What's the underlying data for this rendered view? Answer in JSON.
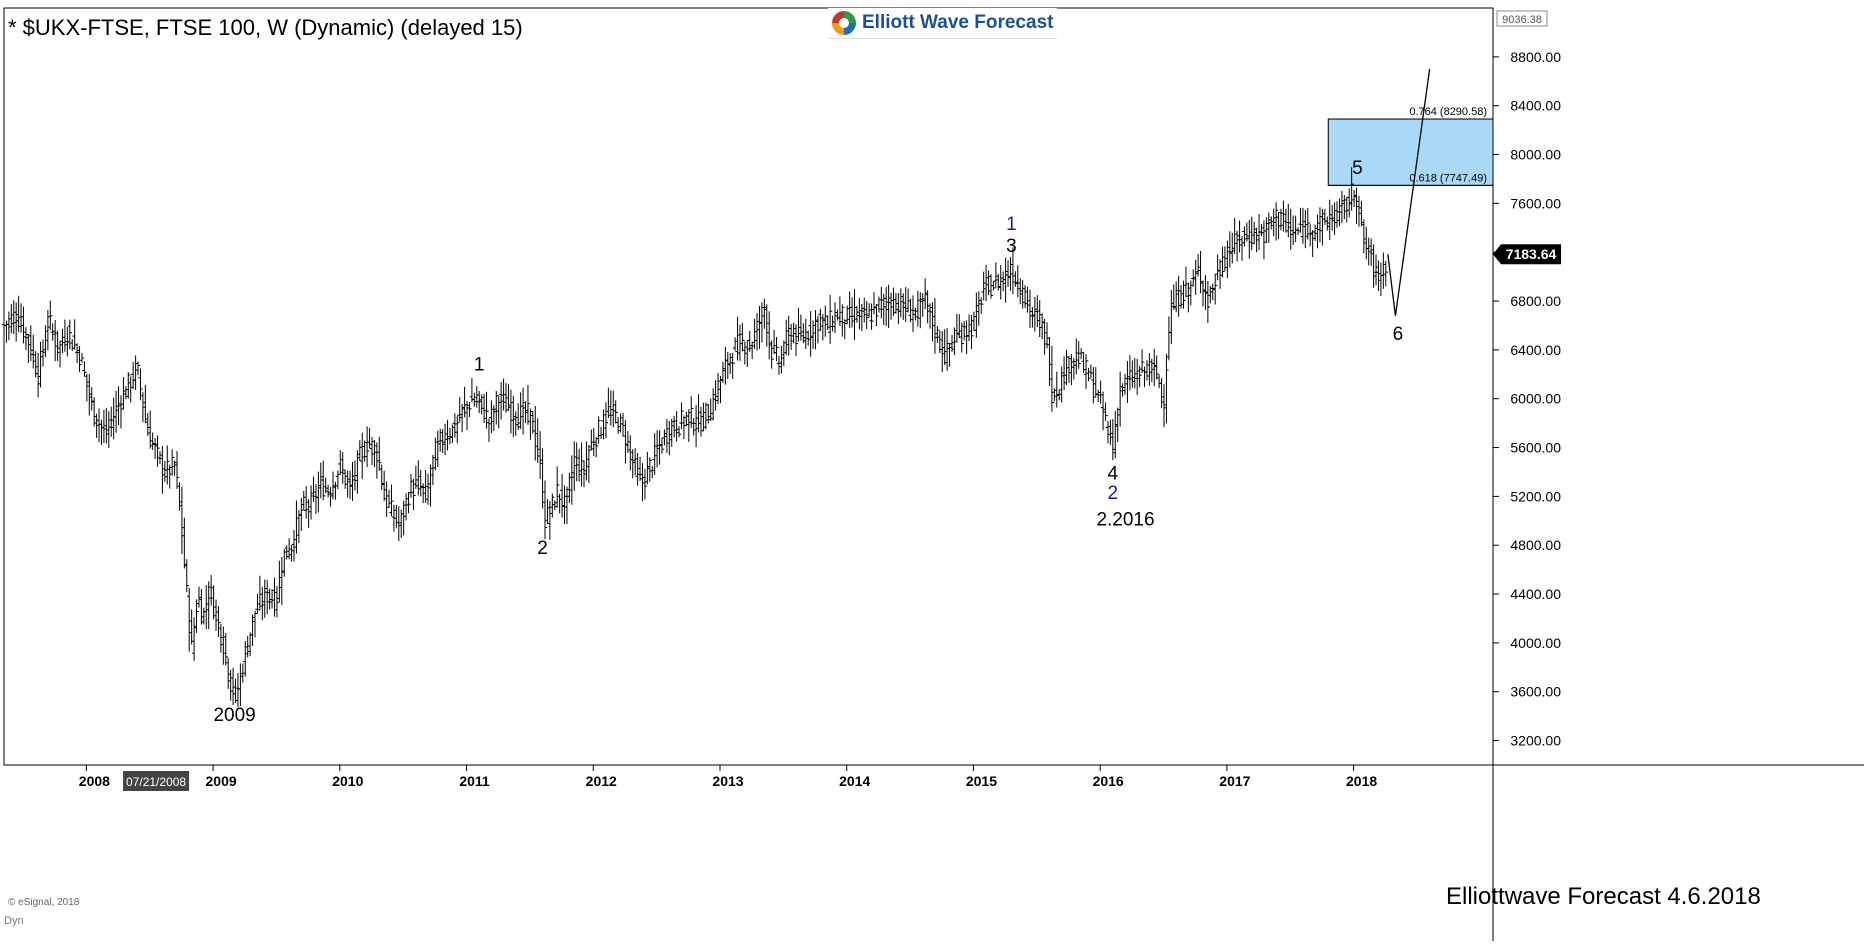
{
  "header": {
    "title": "* $UKX-FTSE, FTSE 100, W (Dynamic) (delayed 15)",
    "logo_text": "Elliott Wave Forecast"
  },
  "footer": {
    "watermark": "Elliottwave Forecast  4.6.2018",
    "copyright": "© eSignal, 2018",
    "dyn_label": "Dyn",
    "cursor_date": "07/21/2008"
  },
  "colors": {
    "price_bars": "#000000",
    "target_box_fill": "#aad8f7",
    "target_box_stroke": "#000000",
    "blue_labels": "#1a1ab0",
    "last_price_bg": "#000000"
  },
  "chart_data": {
    "type": "bar",
    "title": "* $UKX-FTSE, FTSE 100, W (Dynamic) (delayed 15)",
    "xlabel": "",
    "ylabel": "",
    "x_range": [
      2007.35,
      2019.1
    ],
    "ylim": [
      3000,
      9200
    ],
    "x_ticks": [
      2008,
      2009,
      2010,
      2011,
      2012,
      2013,
      2014,
      2015,
      2016,
      2017,
      2018
    ],
    "x_tick_labels": [
      "2008",
      "2009",
      "2010",
      "2011",
      "2012",
      "2013",
      "2014",
      "2015",
      "2016",
      "2017",
      "2018"
    ],
    "y_ticks": [
      3200,
      3600,
      4000,
      4400,
      4800,
      5200,
      5600,
      6000,
      6400,
      6800,
      7200,
      7600,
      8000,
      8400,
      8800
    ],
    "y_tick_labels": [
      "3200.00",
      "3600.00",
      "4000.00",
      "4400.00",
      "4800.00",
      "5200.00",
      "5600.00",
      "6000.00",
      "6400.00",
      "6800.00",
      "7200.00",
      "7600.00",
      "8000.00",
      "8400.00",
      "8800.00"
    ],
    "top_scale_label": "9036.38",
    "last_price": 7183.64,
    "last_price_label": "7183.64",
    "price_path": [
      [
        2007.35,
        6600
      ],
      [
        2007.45,
        6700
      ],
      [
        2007.55,
        6450
      ],
      [
        2007.62,
        6200
      ],
      [
        2007.7,
        6650
      ],
      [
        2007.78,
        6400
      ],
      [
        2007.85,
        6550
      ],
      [
        2007.95,
        6350
      ],
      [
        2008.05,
        5900
      ],
      [
        2008.15,
        5700
      ],
      [
        2008.25,
        5950
      ],
      [
        2008.35,
        6150
      ],
      [
        2008.4,
        6250
      ],
      [
        2008.48,
        5750
      ],
      [
        2008.55,
        5550
      ],
      [
        2008.62,
        5400
      ],
      [
        2008.7,
        5450
      ],
      [
        2008.75,
        4950
      ],
      [
        2008.8,
        4300
      ],
      [
        2008.83,
        3950
      ],
      [
        2008.88,
        4400
      ],
      [
        2008.92,
        4200
      ],
      [
        2008.97,
        4450
      ],
      [
        2009.03,
        4200
      ],
      [
        2009.08,
        4000
      ],
      [
        2009.13,
        3700
      ],
      [
        2009.18,
        3550
      ],
      [
        2009.25,
        3900
      ],
      [
        2009.33,
        4250
      ],
      [
        2009.42,
        4400
      ],
      [
        2009.5,
        4350
      ],
      [
        2009.55,
        4700
      ],
      [
        2009.62,
        4800
      ],
      [
        2009.7,
        5100
      ],
      [
        2009.78,
        5150
      ],
      [
        2009.85,
        5300
      ],
      [
        2009.92,
        5250
      ],
      [
        2010.0,
        5450
      ],
      [
        2010.08,
        5250
      ],
      [
        2010.15,
        5500
      ],
      [
        2010.22,
        5650
      ],
      [
        2010.3,
        5550
      ],
      [
        2010.35,
        5200
      ],
      [
        2010.42,
        5050
      ],
      [
        2010.47,
        4950
      ],
      [
        2010.55,
        5250
      ],
      [
        2010.62,
        5300
      ],
      [
        2010.68,
        5200
      ],
      [
        2010.75,
        5550
      ],
      [
        2010.82,
        5700
      ],
      [
        2010.9,
        5750
      ],
      [
        2010.97,
        5900
      ],
      [
        2011.05,
        6000
      ],
      [
        2011.12,
        5950
      ],
      [
        2011.18,
        5800
      ],
      [
        2011.25,
        6000
      ],
      [
        2011.32,
        5950
      ],
      [
        2011.4,
        5850
      ],
      [
        2011.47,
        5900
      ],
      [
        2011.52,
        5800
      ],
      [
        2011.58,
        5450
      ],
      [
        2011.62,
        5000
      ],
      [
        2011.67,
        5100
      ],
      [
        2011.72,
        5250
      ],
      [
        2011.78,
        5100
      ],
      [
        2011.85,
        5500
      ],
      [
        2011.92,
        5400
      ],
      [
        2011.97,
        5600
      ],
      [
        2012.05,
        5750
      ],
      [
        2012.12,
        5900
      ],
      [
        2012.18,
        5850
      ],
      [
        2012.25,
        5700
      ],
      [
        2012.32,
        5450
      ],
      [
        2012.38,
        5300
      ],
      [
        2012.45,
        5450
      ],
      [
        2012.52,
        5600
      ],
      [
        2012.6,
        5750
      ],
      [
        2012.68,
        5800
      ],
      [
        2012.75,
        5850
      ],
      [
        2012.83,
        5800
      ],
      [
        2012.92,
        5900
      ],
      [
        2013.0,
        6150
      ],
      [
        2013.08,
        6350
      ],
      [
        2013.15,
        6450
      ],
      [
        2013.25,
        6450
      ],
      [
        2013.35,
        6750
      ],
      [
        2013.4,
        6400
      ],
      [
        2013.47,
        6300
      ],
      [
        2013.55,
        6550
      ],
      [
        2013.62,
        6500
      ],
      [
        2013.7,
        6550
      ],
      [
        2013.78,
        6650
      ],
      [
        2013.85,
        6600
      ],
      [
        2013.92,
        6700
      ],
      [
        2014.0,
        6650
      ],
      [
        2014.08,
        6700
      ],
      [
        2014.15,
        6650
      ],
      [
        2014.25,
        6750
      ],
      [
        2014.35,
        6800
      ],
      [
        2014.45,
        6750
      ],
      [
        2014.55,
        6700
      ],
      [
        2014.62,
        6800
      ],
      [
        2014.7,
        6550
      ],
      [
        2014.78,
        6350
      ],
      [
        2014.85,
        6500
      ],
      [
        2014.92,
        6550
      ],
      [
        2015.0,
        6600
      ],
      [
        2015.08,
        6900
      ],
      [
        2015.18,
        6950
      ],
      [
        2015.3,
        7050
      ],
      [
        2015.38,
        6900
      ],
      [
        2015.45,
        6700
      ],
      [
        2015.52,
        6650
      ],
      [
        2015.58,
        6450
      ],
      [
        2015.62,
        6050
      ],
      [
        2015.67,
        6100
      ],
      [
        2015.75,
        6300
      ],
      [
        2015.82,
        6350
      ],
      [
        2015.9,
        6200
      ],
      [
        2015.97,
        6050
      ],
      [
        2016.05,
        5800
      ],
      [
        2016.1,
        5600
      ],
      [
        2016.15,
        6050
      ],
      [
        2016.22,
        6150
      ],
      [
        2016.3,
        6200
      ],
      [
        2016.38,
        6250
      ],
      [
        2016.45,
        6200
      ],
      [
        2016.5,
        5950
      ],
      [
        2016.55,
        6700
      ],
      [
        2016.62,
        6850
      ],
      [
        2016.7,
        6900
      ],
      [
        2016.78,
        7050
      ],
      [
        2016.85,
        6800
      ],
      [
        2016.92,
        7000
      ],
      [
        2017.0,
        7200
      ],
      [
        2017.1,
        7300
      ],
      [
        2017.2,
        7350
      ],
      [
        2017.3,
        7350
      ],
      [
        2017.38,
        7500
      ],
      [
        2017.45,
        7450
      ],
      [
        2017.52,
        7350
      ],
      [
        2017.6,
        7400
      ],
      [
        2017.7,
        7400
      ],
      [
        2017.78,
        7450
      ],
      [
        2017.85,
        7500
      ],
      [
        2017.92,
        7550
      ],
      [
        2018.0,
        7700
      ],
      [
        2018.03,
        7650
      ],
      [
        2018.07,
        7300
      ],
      [
        2018.12,
        7200
      ],
      [
        2018.18,
        7000
      ],
      [
        2018.22,
        7050
      ],
      [
        2018.25,
        7100
      ],
      [
        2018.27,
        7183.64
      ]
    ],
    "projection_path": [
      [
        2018.27,
        7183.64
      ],
      [
        2018.33,
        6680
      ],
      [
        2018.6,
        8700
      ]
    ],
    "fib_levels": [
      {
        "value": 8290.58,
        "label": "0.764 (8290.58)"
      },
      {
        "value": 7747.49,
        "label": "0.618 (7747.49)"
      }
    ],
    "target_box": {
      "x_start": 2017.8,
      "x_end": 2019.1,
      "y_low": 7747.49,
      "y_high": 8290.58
    },
    "annotations": [
      {
        "text": "2009",
        "x": 2009.17,
        "y": 3360,
        "color": "black"
      },
      {
        "text": "1",
        "x": 2011.1,
        "y": 6230,
        "color": "black"
      },
      {
        "text": "2",
        "x": 2011.6,
        "y": 4730,
        "color": "black"
      },
      {
        "text": "3",
        "x": 2015.3,
        "y": 7200,
        "color": "black"
      },
      {
        "text": "1",
        "x": 2015.3,
        "y": 7380,
        "color": "blue"
      },
      {
        "text": "4",
        "x": 2016.1,
        "y": 5340,
        "color": "black"
      },
      {
        "text": "2",
        "x": 2016.1,
        "y": 5180,
        "color": "blue"
      },
      {
        "text": "2.2016",
        "x": 2016.2,
        "y": 4960,
        "color": "black"
      },
      {
        "text": "5",
        "x": 2018.03,
        "y": 7840,
        "color": "black"
      },
      {
        "text": "6",
        "x": 2018.35,
        "y": 6480,
        "color": "black"
      }
    ]
  }
}
